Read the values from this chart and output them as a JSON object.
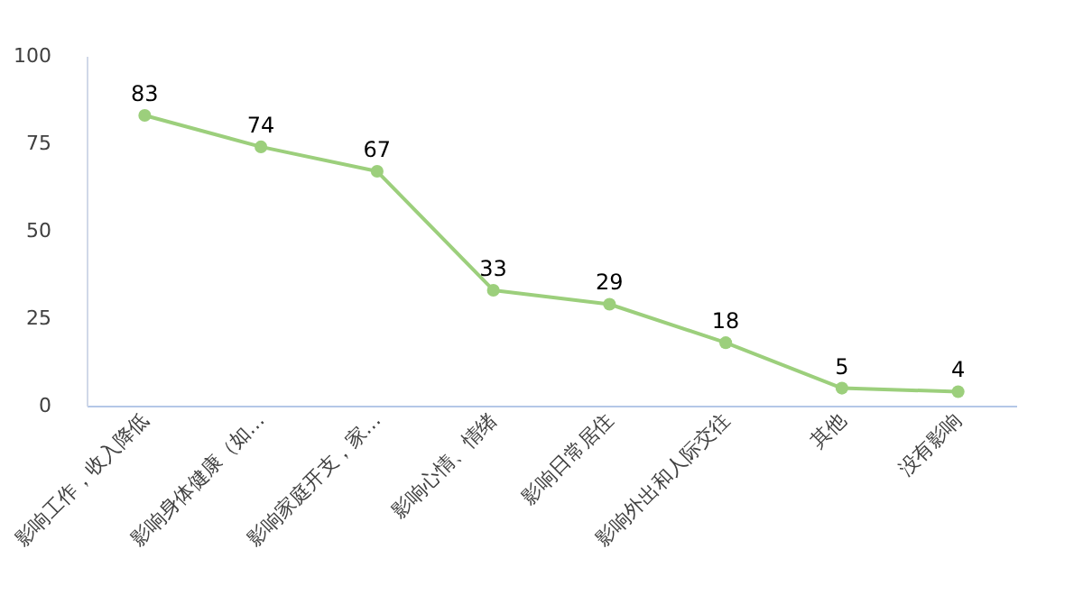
{
  "chart_data": {
    "type": "line",
    "categories": [
      "影响工作，收入降低",
      "影响身体健康（如…",
      "影响家庭开支，家…",
      "影响心情、情绪",
      "影响日常居住",
      "影响外出和人际交往",
      "其他",
      "没有影响"
    ],
    "series": [
      {
        "color": "#9ccf7c",
        "values": [
          83,
          74,
          67,
          33,
          29,
          18,
          5,
          4
        ]
      }
    ],
    "ylim": [
      0,
      100
    ],
    "yticks": [
      0,
      25,
      50,
      75,
      100
    ],
    "grid": false,
    "marker": "circle",
    "line_style": "solid",
    "data_labels": true
  }
}
